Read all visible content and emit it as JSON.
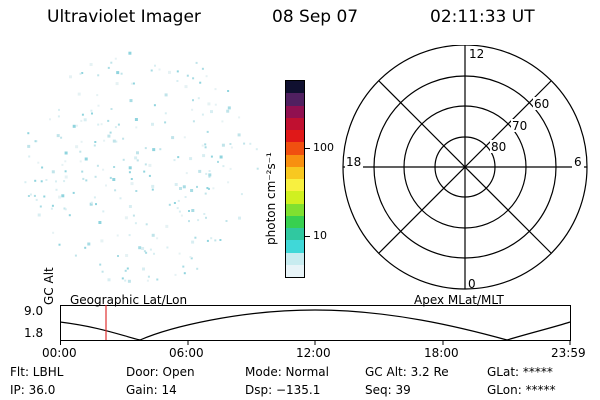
{
  "header": {
    "instrument": "Ultraviolet Imager",
    "date": "08 Sep 07",
    "time": "02:11:33 UT"
  },
  "colorbar": {
    "unit_label": "photon cm⁻²s⁻¹",
    "tick_100": "100",
    "tick_10": "10",
    "colors": [
      "#e8f4f8",
      "#c8ecf0",
      "#40d8d8",
      "#30c8a0",
      "#38d050",
      "#80e030",
      "#d0f020",
      "#f8f040",
      "#f8c820",
      "#f89010",
      "#f05010",
      "#e01818",
      "#c01030",
      "#901050",
      "#502060",
      "#101030"
    ]
  },
  "polar": {
    "mlt_12": "12",
    "mlt_18": "18",
    "mlt_6": "6",
    "mlt_0": "0",
    "lat_60": "60",
    "lat_70": "70",
    "lat_80": "80"
  },
  "orbit": {
    "y_label": "GC Alt",
    "y_max": "9.0",
    "y_min": "1.8",
    "left_label": "Geographic Lat/Lon",
    "right_label": "Apex  MLat/MLT",
    "ticks": [
      "00:00",
      "06:00",
      "12:00",
      "18:00",
      "23:59"
    ]
  },
  "info": {
    "filter": "Flt: LBHL",
    "door": "Door: Open",
    "mode": "Mode: Normal",
    "gc_alt": "GC Alt: 3.2 Re",
    "glat": "GLat: *****",
    "ip": "IP: 36.0",
    "gain": "Gain: 14",
    "dsp": "Dsp: −135.1",
    "seq": "Seq: 39",
    "glon": "GLon: *****"
  }
}
